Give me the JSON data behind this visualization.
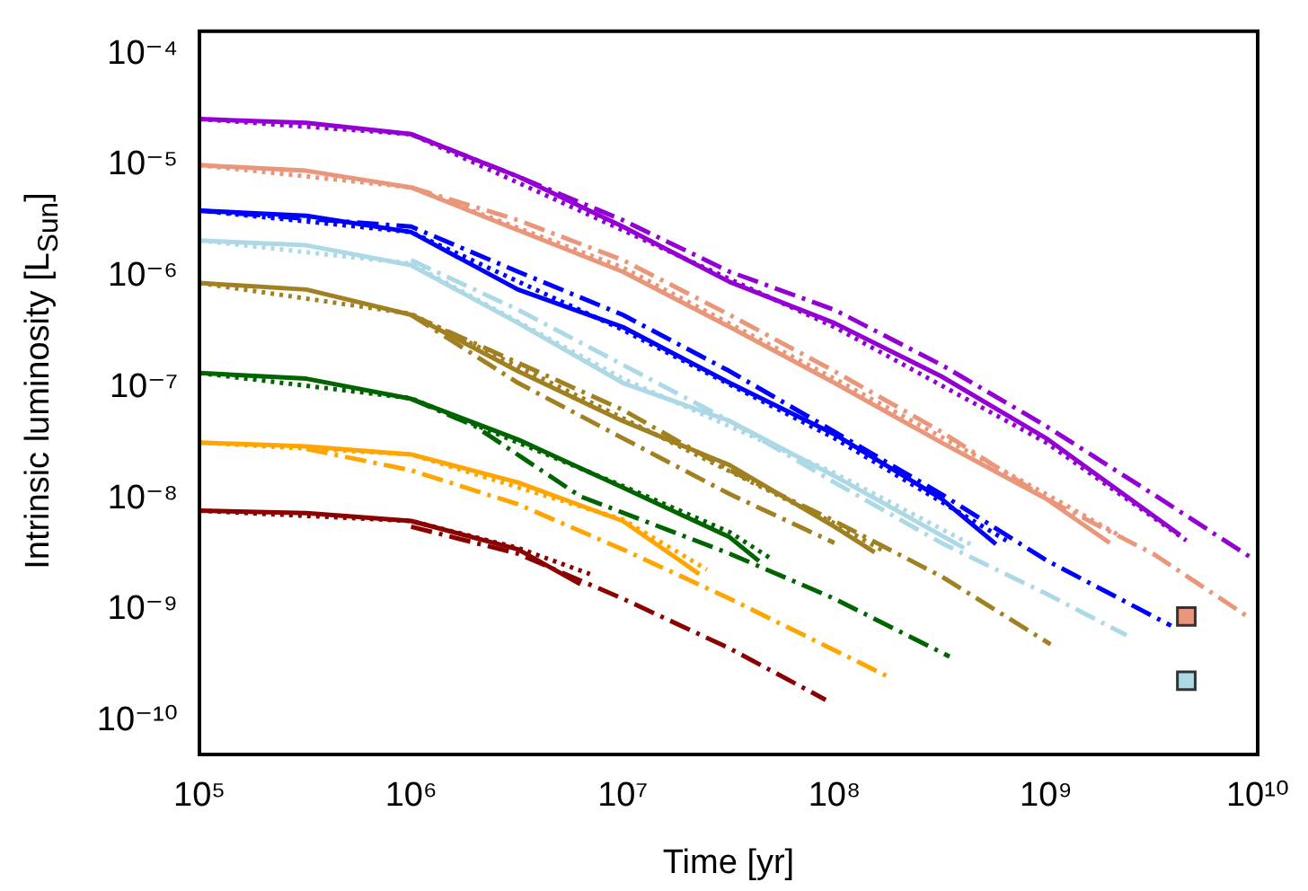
{
  "chart_data": {
    "type": "line",
    "xlabel": "Time [yr]",
    "ylabel": "Intrinsic luminosity [L$_{Sun}$]",
    "log": "xy",
    "grid": false,
    "legend": false,
    "xlim": [
      100000,
      10000000000
    ],
    "ylim": [
      5e-11,
      0.00016
    ],
    "xticks": [
      {
        "value": 100000,
        "label": "10⁵"
      },
      {
        "value": 1000000,
        "label": "10⁶"
      },
      {
        "value": 10000000,
        "label": "10⁷"
      },
      {
        "value": 100000000,
        "label": "10⁸"
      },
      {
        "value": 1000000000,
        "label": "10⁹"
      },
      {
        "value": 10000000000,
        "label": "10¹⁰"
      }
    ],
    "yticks": [
      {
        "value": 1e-10,
        "label": "10⁻¹⁰"
      },
      {
        "value": 1e-09,
        "label": "10⁻⁹"
      },
      {
        "value": 1e-08,
        "label": "10⁻⁸"
      },
      {
        "value": 1e-07,
        "label": "10⁻⁷"
      },
      {
        "value": 1e-06,
        "label": "10⁻⁶"
      },
      {
        "value": 1e-05,
        "label": "10⁻⁵"
      },
      {
        "value": 0.0001,
        "label": "10⁻⁴"
      }
    ],
    "series": [
      {
        "color": "#9400d3",
        "line_style": "solid",
        "x": [
          100000.0,
          320000.0,
          1000000.0,
          3200000.0,
          10000000.0,
          32000000.0,
          100000000.0,
          320000000.0,
          1000000000.0,
          4300000000.0
        ],
        "values": [
          2.6e-05,
          2.4e-05,
          1.9e-05,
          7.9e-06,
          2.8e-06,
          8.9e-07,
          3.8e-07,
          1.26e-07,
          3.5e-08,
          4.7e-09
        ]
      },
      {
        "color": "#9400d3",
        "line_style": "dotted",
        "x": [
          100000.0,
          1000000.0,
          10000000.0,
          100000000.0,
          1000000000.0,
          4600000000.0
        ],
        "values": [
          2.6e-05,
          1.9e-05,
          2.6e-06,
          3.5e-07,
          3.2e-08,
          4.2e-09
        ]
      },
      {
        "color": "#9400d3",
        "line_style": "dashed",
        "x": [
          1000000.0,
          3200000.0,
          10000000.0,
          32000000.0,
          100000000.0,
          320000000.0,
          1000000000.0,
          3200000000.0,
          9300000000.0
        ],
        "values": [
          1.9e-05,
          7.9e-06,
          3.2e-06,
          1.1e-06,
          5e-07,
          1.6e-07,
          4.5e-08,
          1.1e-08,
          2.95e-09
        ]
      },
      {
        "color": "#e9967a",
        "line_style": "solid",
        "x": [
          100000.0,
          320000.0,
          1000000.0,
          3200000.0,
          10000000.0,
          32000000.0,
          100000000.0,
          320000000.0,
          1000000000.0,
          2000000000.0
        ],
        "values": [
          1e-05,
          8.9e-06,
          6.3e-06,
          2.6e-06,
          1.1e-06,
          3.5e-07,
          1.1e-07,
          3.2e-08,
          1e-08,
          4e-09
        ]
      },
      {
        "color": "#e9967a",
        "line_style": "dotted",
        "x": [
          100000.0,
          1000000.0,
          10000000.0,
          100000000.0,
          1000000000.0,
          2300000000.0
        ],
        "values": [
          1e-05,
          6.3e-06,
          1.2e-06,
          1.2e-07,
          1.1e-08,
          4.5e-09
        ]
      },
      {
        "color": "#e9967a",
        "line_style": "dashed",
        "x": [
          1000000.0,
          3200000.0,
          10000000.0,
          32000000.0,
          100000000.0,
          320000000.0,
          1000000000.0,
          3200000000.0,
          9300000000.0
        ],
        "values": [
          6.3e-06,
          3.2e-06,
          1.4e-06,
          4.5e-07,
          1.4e-07,
          4e-08,
          1e-08,
          3.2e-09,
          8.3e-10
        ]
      },
      {
        "color": "#0000ff",
        "line_style": "solid",
        "x": [
          100000.0,
          320000.0,
          1000000.0,
          3200000.0,
          10000000.0,
          32000000.0,
          100000000.0,
          320000000.0,
          580000000.0
        ],
        "values": [
          3.9e-06,
          3.5e-06,
          2.5e-06,
          7.6e-07,
          3.5e-07,
          1.1e-07,
          3.8e-08,
          1e-08,
          3.9e-09
        ]
      },
      {
        "color": "#0000ff",
        "line_style": "dotted",
        "x": [
          100000.0,
          1000000.0,
          10000000.0,
          100000000.0,
          650000000.0
        ],
        "values": [
          3.9e-06,
          2.5e-06,
          3.3e-07,
          3.5e-08,
          4.2e-09
        ]
      },
      {
        "color": "#0000ff",
        "line_style": "dashed",
        "x": [
          100000.0,
          1000000.0,
          3200000.0,
          10000000.0,
          32000000.0,
          100000000.0,
          320000000.0,
          1000000000.0,
          3900000000.0
        ],
        "values": [
          3.9e-06,
          2.8e-06,
          1.1e-06,
          4.5e-07,
          1.4e-07,
          4e-08,
          1.1e-08,
          2.8e-09,
          7.2e-10
        ]
      },
      {
        "color": "#add8e6",
        "line_style": "solid",
        "x": [
          100000.0,
          320000.0,
          1000000.0,
          3200000.0,
          10000000.0,
          32000000.0,
          100000000.0,
          410000000.0
        ],
        "values": [
          2.1e-06,
          1.9e-06,
          1.26e-06,
          3.8e-07,
          1.1e-07,
          5e-08,
          1.6e-08,
          3.6e-09
        ]
      },
      {
        "color": "#add8e6",
        "line_style": "dotted",
        "x": [
          100000.0,
          1000000.0,
          10000000.0,
          100000000.0,
          450000000.0
        ],
        "values": [
          2.1e-06,
          1.3e-06,
          1.2e-07,
          1.7e-08,
          3.8e-09
        ]
      },
      {
        "color": "#add8e6",
        "line_style": "dashed",
        "x": [
          1000000.0,
          3200000.0,
          10000000.0,
          32000000.0,
          100000000.0,
          320000000.0,
          1000000000.0,
          2400000000.0
        ],
        "values": [
          1.4e-06,
          5e-07,
          1.6e-07,
          5e-08,
          1.4e-08,
          4e-09,
          1.4e-09,
          5.9e-10
        ]
      },
      {
        "color": "#a08020",
        "line_style": "solid",
        "x": [
          100000.0,
          320000.0,
          1000000.0,
          3200000.0,
          10000000.0,
          32000000.0,
          100000000.0,
          155000000.0
        ],
        "values": [
          8.7e-07,
          7.6e-07,
          4.5e-07,
          1.4e-07,
          5e-08,
          2e-08,
          5.6e-09,
          3.3e-09
        ]
      },
      {
        "color": "#a08020",
        "line_style": "dotted",
        "x": [
          100000.0,
          1000000.0,
          10000000.0,
          100000000.0,
          170000000.0
        ],
        "values": [
          8.7e-07,
          4.6e-07,
          5.3e-08,
          6e-09,
          3.4e-09
        ]
      },
      {
        "color": "#a08020",
        "line_style": "dashed",
        "x": [
          1000000.0,
          10000000.0,
          32000000.0,
          100000000.0,
          320000000.0,
          1050000000.0
        ],
        "values": [
          4.5e-07,
          6.3e-08,
          1.8e-08,
          6.3e-09,
          2e-09,
          4.9e-10
        ]
      },
      {
        "color": "#a08020",
        "line_style": "dashed",
        "x": [
          1000000.0,
          3200000.0,
          10000000.0,
          32000000.0,
          100000000.0
        ],
        "values": [
          4.5e-07,
          1.1e-07,
          3.5e-08,
          1.1e-08,
          4e-09
        ]
      },
      {
        "color": "#006400",
        "line_style": "solid",
        "x": [
          100000.0,
          320000.0,
          1000000.0,
          3200000.0,
          10000000.0,
          32000000.0,
          44000000.0
        ],
        "values": [
          1.35e-07,
          1.2e-07,
          7.9e-08,
          3.4e-08,
          1.26e-08,
          4.5e-09,
          2.75e-09
        ]
      },
      {
        "color": "#006400",
        "line_style": "dotted",
        "x": [
          100000.0,
          1000000.0,
          10000000.0,
          32000000.0,
          50000000.0
        ],
        "values": [
          1.35e-07,
          8e-08,
          1.3e-08,
          5e-09,
          2.9e-09
        ]
      },
      {
        "color": "#006400",
        "line_style": "dashed",
        "x": [
          1000000.0,
          2000000.0,
          6300000.0,
          32000000.0,
          100000000.0,
          350000000.0
        ],
        "values": [
          7.9e-08,
          4.5e-08,
          1.05e-08,
          3.2e-09,
          1.26e-09,
          3.8e-10
        ]
      },
      {
        "color": "#ffa500",
        "line_style": "solid",
        "x": [
          100000.0,
          320000.0,
          1000000.0,
          3200000.0,
          10000000.0,
          23000000.0
        ],
        "values": [
          3.2e-08,
          2.95e-08,
          2.5e-08,
          1.4e-08,
          6.3e-09,
          2.1e-09
        ]
      },
      {
        "color": "#ffa500",
        "line_style": "dotted",
        "x": [
          100000.0,
          1000000.0,
          10000000.0,
          25000000.0
        ],
        "values": [
          3.2e-08,
          2.5e-08,
          6.5e-09,
          2.3e-09
        ]
      },
      {
        "color": "#ffa500",
        "line_style": "dashed",
        "x": [
          320000.0,
          1000000.0,
          3200000.0,
          10000000.0,
          32000000.0,
          180000000.0
        ],
        "values": [
          2.8e-08,
          1.8e-08,
          8.9e-09,
          3.5e-09,
          1.26e-09,
          2.5e-10
        ]
      },
      {
        "color": "#8b0000",
        "line_style": "solid",
        "x": [
          100000.0,
          320000.0,
          1000000.0,
          3200000.0,
          6300000.0
        ],
        "values": [
          7.8e-09,
          7.4e-09,
          6.3e-09,
          3.5e-09,
          1.7e-09
        ]
      },
      {
        "color": "#8b0000",
        "line_style": "dotted",
        "x": [
          100000.0,
          1000000.0,
          3200000.0,
          7000000.0
        ],
        "values": [
          7.8e-09,
          6.3e-09,
          3.6e-09,
          2.1e-09
        ]
      },
      {
        "color": "#8b0000",
        "line_style": "dashed",
        "x": [
          1000000.0,
          3200000.0,
          10000000.0,
          32000000.0,
          91000000.0
        ],
        "values": [
          5.6e-09,
          3.2e-09,
          1.26e-09,
          4.5e-10,
          1.55e-10
        ]
      },
      {
        "type": "scatter",
        "marker": "square",
        "color": "#e9967a",
        "x": [
          4600000000.0
        ],
        "values": [
          8.7e-10
        ]
      },
      {
        "type": "scatter",
        "marker": "square",
        "color": "#add8e6",
        "x": [
          4600000000.0
        ],
        "values": [
          2.3e-10
        ]
      }
    ]
  }
}
